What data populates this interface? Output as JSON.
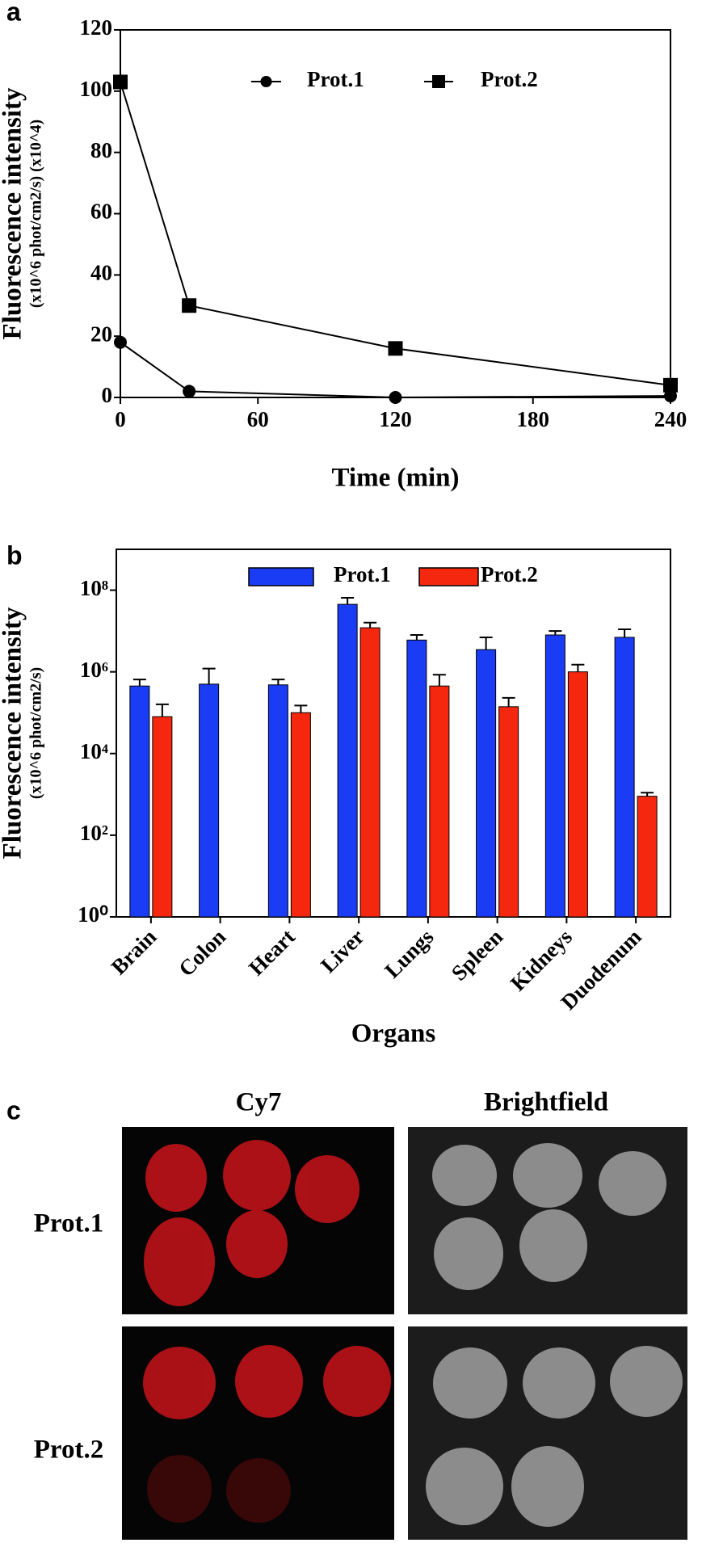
{
  "chart_data": [
    {
      "type": "line",
      "panel_label": "a",
      "x_label": "Time (min)",
      "y_label": "Fluorescence intensity",
      "y_sublabel": "(x10^6 phot/cm2/s) (x10^4)",
      "x": [
        0,
        30,
        120,
        240
      ],
      "series": [
        {
          "name": "Prot.1",
          "color": "#000000",
          "marker": "circle",
          "values": [
            18,
            2,
            0,
            0.5
          ]
        },
        {
          "name": "Prot.2",
          "color": "#000000",
          "marker": "square",
          "values": [
            103,
            30,
            16,
            4
          ]
        }
      ],
      "xlim": [
        0,
        240
      ],
      "xticks": [
        0,
        60,
        120,
        180,
        240
      ],
      "ylim": [
        0,
        120
      ],
      "yticks": [
        0,
        20,
        40,
        60,
        80,
        100,
        120
      ],
      "legend": "top"
    },
    {
      "type": "bar",
      "panel_label": "b",
      "x_label": "Organs",
      "y_label": "Fluorescence intensity",
      "y_sublabel": "(x10^6 phot/cm2/s)",
      "categories": [
        "Brain",
        "Colon",
        "Heart",
        "Liver",
        "Lungs",
        "Spleen",
        "Kidneys",
        "Duodenum"
      ],
      "series": [
        {
          "name": "Prot.1",
          "color": "#1a3cf5",
          "values": [
            450000,
            500000,
            480000,
            45000000,
            6000000,
            3500000,
            8000000,
            7000000
          ],
          "errors": [
            200000,
            700000,
            170000,
            20000000,
            2000000,
            3500000,
            2000000,
            4000000
          ]
        },
        {
          "name": "Prot.2",
          "color": "#f5280f",
          "values": [
            80000,
            null,
            100000,
            12000000,
            450000,
            140000,
            1000000,
            900
          ],
          "errors": [
            80000,
            null,
            50000,
            4000000,
            400000,
            90000,
            500000,
            200
          ]
        }
      ],
      "log_scale": true,
      "ylim": [
        1,
        1000000000
      ],
      "yticks": [
        {
          "value": 1,
          "label": "10⁰"
        },
        {
          "value": 100,
          "label": "10²"
        },
        {
          "value": 10000,
          "label": "10⁴"
        },
        {
          "value": 1000000,
          "label": "10⁶"
        },
        {
          "value": 100000000,
          "label": "10⁸"
        }
      ],
      "legend": "top"
    }
  ],
  "panel_c": {
    "label": "c",
    "columns": [
      "Cy7",
      "Brightfield"
    ],
    "rows": [
      "Prot.1",
      "Prot.2"
    ]
  }
}
